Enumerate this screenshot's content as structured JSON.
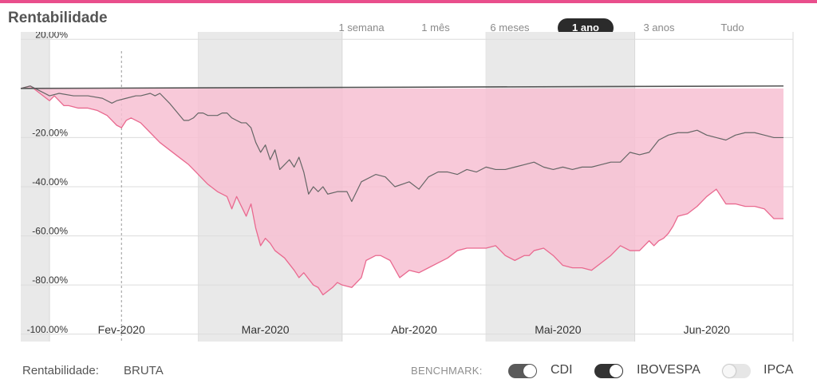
{
  "title": "Rentabilidade",
  "ranges": [
    {
      "label": "1 semana",
      "active": false
    },
    {
      "label": "1 mês",
      "active": false
    },
    {
      "label": "6 meses",
      "active": false
    },
    {
      "label": "1 ano",
      "active": true
    },
    {
      "label": "3 anos",
      "active": false
    },
    {
      "label": "Tudo",
      "active": false
    }
  ],
  "footer": {
    "label": "Rentabilidade:",
    "value": "BRUTA",
    "benchmark_label": "BENCHMARK:",
    "toggles": [
      {
        "label": "CDI",
        "on": true
      },
      {
        "label": "IBOVESPA",
        "on": true
      },
      {
        "label": "IPCA",
        "on": false
      }
    ]
  },
  "chart_data": {
    "type": "area",
    "y_tick_labels": [
      "20.00%",
      "-20.00%",
      "-40.00%",
      "-60.00%",
      "-80.00%",
      "-100.00%"
    ],
    "y_ticks": [
      20,
      -20,
      -40,
      -60,
      -80,
      -100
    ],
    "ylim": [
      -103,
      23
    ],
    "x_tick_labels": [
      "Fev-2020",
      "Mar-2020",
      "Abr-2020",
      "Mai-2020",
      "Jun-2020"
    ],
    "x_ticks": [
      20,
      50,
      81,
      111,
      142
    ],
    "xlim": [
      -1,
      160
    ],
    "grid": true,
    "colors": {
      "fund": "#e9698f",
      "fund_fill": "#f7bfd2",
      "benchmark": "#666666",
      "cdi": "#555555",
      "shade": "#e9e9e9"
    },
    "series": [
      {
        "x": [
          -1,
          1,
          3,
          5,
          6,
          8,
          9,
          11,
          13,
          15,
          17,
          18,
          19,
          20,
          21,
          22,
          24,
          26,
          28,
          30,
          32,
          34,
          36,
          38,
          40,
          42,
          43,
          44,
          45,
          46,
          47,
          48,
          49,
          50,
          51,
          52,
          54,
          56,
          57,
          58,
          60,
          61,
          62,
          64,
          65,
          66,
          68,
          70,
          71,
          72,
          73,
          74,
          75,
          76,
          78,
          80,
          82,
          84,
          86,
          88,
          90,
          92,
          94,
          96,
          98,
          100,
          102,
          104,
          105,
          106,
          108,
          110,
          112,
          114,
          116,
          118,
          120,
          122,
          124,
          126,
          128,
          130,
          131,
          132,
          133,
          134,
          135,
          136,
          138,
          140,
          142,
          144,
          146,
          148,
          150,
          152,
          154,
          156,
          158
        ],
        "y": [
          0,
          1,
          -2,
          -5,
          -3,
          -7,
          -7,
          -8,
          -8,
          -9,
          -11,
          -13,
          -15,
          -16,
          -13,
          -12,
          -14,
          -18,
          -22,
          -25,
          -28,
          -31,
          -35,
          -39,
          -42,
          -44,
          -49,
          -44,
          -48,
          -52,
          -47,
          -57,
          -64,
          -61,
          -63,
          -66,
          -69,
          -74,
          -77,
          -75,
          -80,
          -81,
          -84,
          -81,
          -79,
          -80,
          -81,
          -77,
          -70,
          -69,
          -68,
          -68,
          -69,
          -70,
          -77,
          -74,
          -75,
          -73,
          -71,
          -69,
          -66,
          -65,
          -65,
          -65,
          -64,
          -68,
          -70,
          -68,
          -68,
          -66,
          -65,
          -68,
          -72,
          -73,
          -73,
          -74,
          -71,
          -68,
          -64,
          -66,
          -66,
          -62,
          -64,
          -62,
          -61,
          -59,
          -56,
          -52,
          -51,
          -48,
          -44,
          -41,
          -47,
          -47,
          -48,
          -48,
          -49,
          -53,
          -53
        ]
      },
      {
        "x": [
          -1,
          1,
          3,
          5,
          7,
          10,
          13,
          16,
          18,
          19,
          21,
          23,
          24,
          26,
          27,
          28,
          30,
          33,
          34,
          35,
          36,
          37,
          38,
          40,
          41,
          42,
          43,
          44,
          45,
          46,
          47,
          48,
          49,
          50,
          51,
          52,
          53,
          54,
          55,
          56,
          57,
          58,
          59,
          60,
          61,
          62,
          63,
          65,
          67,
          68,
          70,
          73,
          75,
          77,
          80,
          82,
          84,
          86,
          88,
          90,
          92,
          94,
          96,
          98,
          100,
          102,
          104,
          106,
          108,
          110,
          112,
          114,
          116,
          118,
          120,
          122,
          124,
          126,
          128,
          130,
          132,
          134,
          136,
          138,
          140,
          142,
          144,
          146,
          148,
          150,
          152,
          154,
          156,
          158
        ],
        "y": [
          0,
          1,
          -1,
          -3,
          -2,
          -3,
          -3,
          -4,
          -6,
          -5,
          -4,
          -3,
          -3,
          -2,
          -3,
          -2,
          -6,
          -13,
          -13,
          -12,
          -10,
          -10,
          -11,
          -11,
          -10,
          -10,
          -12,
          -13,
          -14,
          -14,
          -16,
          -22,
          -26,
          -23,
          -29,
          -25,
          -33,
          -31,
          -29,
          -32,
          -28,
          -34,
          -43,
          -40,
          -42,
          -40,
          -43,
          -42,
          -42,
          -46,
          -38,
          -35,
          -36,
          -40,
          -38,
          -41,
          -36,
          -34,
          -34,
          -35,
          -33,
          -34,
          -32,
          -33,
          -33,
          -32,
          -31,
          -30,
          -32,
          -33,
          -32,
          -33,
          -32,
          -32,
          -31,
          -30,
          -30,
          -26,
          -27,
          -26,
          -21,
          -19,
          -18,
          -18,
          -17,
          -19,
          -20,
          -21,
          -19,
          -18,
          -18,
          -19,
          -20,
          -20
        ]
      },
      {
        "x": [
          -1,
          158
        ],
        "y": [
          0,
          1
        ]
      }
    ]
  }
}
